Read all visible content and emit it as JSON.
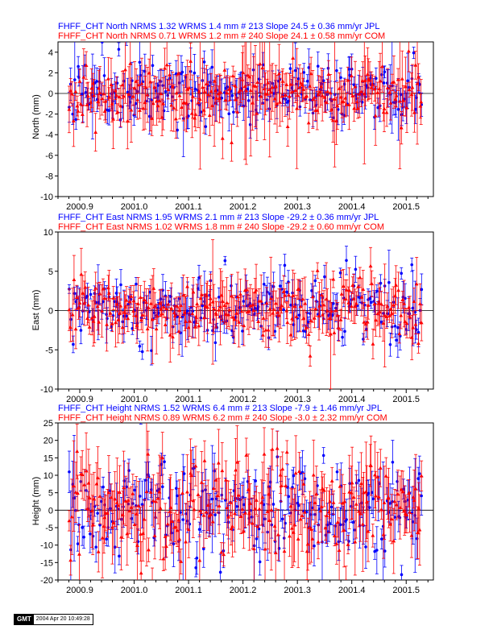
{
  "colors": {
    "jpl": "#0000ff",
    "com": "#ff0000",
    "axis": "#000000"
  },
  "footer": {
    "logo": "GMT",
    "timestamp": "2004 Apr 20 10:49:28"
  },
  "chart_data": [
    {
      "type": "scatter",
      "component": "north",
      "titles": [
        {
          "text": "FHFF_CHT North NRMS 1.32 WRMS  1.4 mm # 213 Slope  24.5 ±  0.36 mm/yr JPL",
          "color": "#0000ff"
        },
        {
          "text": "FHFF_CHT North NRMS 0.71 WRMS  1.2 mm # 240 Slope  24.1 ±  0.58 mm/yr COM",
          "color": "#ff0000"
        }
      ],
      "ylabel": "North (mm)",
      "xlim": [
        2000.86,
        2001.55
      ],
      "ylim": [
        -10,
        5
      ],
      "xticks": [
        "2000.9",
        "2001.0",
        "2001.1",
        "2001.2",
        "2001.3",
        "2001.4",
        "2001.5"
      ],
      "yticks": [
        -10,
        -8,
        -6,
        -4,
        -2,
        0,
        2,
        4
      ],
      "zero_line": true,
      "series": [
        {
          "name": "JPL",
          "count": 213,
          "marker": "circle",
          "color": "#0000ff",
          "err_mean": 1.1,
          "spread": 1.4,
          "seed": 11
        },
        {
          "name": "COM",
          "count": 240,
          "marker": "triangle",
          "color": "#ff0000",
          "err_mean": 1.7,
          "spread": 1.2,
          "seed": 23
        }
      ]
    },
    {
      "type": "scatter",
      "component": "east",
      "titles": [
        {
          "text": "FHFF_CHT East NRMS 1.95 WRMS  2.1 mm # 213 Slope  -29.2 ±  0.36 mm/yr JPL",
          "color": "#0000ff"
        },
        {
          "text": "FHFF_CHT East NRMS 1.02 WRMS  1.8 mm # 240 Slope  -29.2 ±  0.60 mm/yr COM",
          "color": "#ff0000"
        }
      ],
      "ylabel": "East (mm)",
      "xlim": [
        2000.86,
        2001.55
      ],
      "ylim": [
        -10,
        10
      ],
      "xticks": [
        "2000.9",
        "2001.0",
        "2001.1",
        "2001.2",
        "2001.3",
        "2001.4",
        "2001.5"
      ],
      "yticks": [
        -10,
        -5,
        0,
        5,
        10
      ],
      "zero_line": true,
      "series": [
        {
          "name": "JPL",
          "count": 213,
          "marker": "circle",
          "color": "#0000ff",
          "err_mean": 1.2,
          "spread": 2.1,
          "seed": 37
        },
        {
          "name": "COM",
          "count": 240,
          "marker": "triangle",
          "color": "#ff0000",
          "err_mean": 2.0,
          "spread": 1.8,
          "seed": 41
        }
      ]
    },
    {
      "type": "scatter",
      "component": "height",
      "titles": [
        {
          "text": "FHFF_CHT Height NRMS 1.52 WRMS  6.4 mm # 213 Slope   -7.9 ±  1.46 mm/yr JPL",
          "color": "#0000ff"
        },
        {
          "text": "FHFF_CHT Height NRMS 0.89 WRMS  6.2 mm # 240 Slope   -3.0 ±  2.32 mm/yr COM",
          "color": "#ff0000"
        }
      ],
      "ylabel": "Height (mm)",
      "xlim": [
        2000.86,
        2001.55
      ],
      "ylim": [
        -20,
        25
      ],
      "xticks": [
        "2000.9",
        "2001.0",
        "2001.1",
        "2001.2",
        "2001.3",
        "2001.4",
        "2001.5"
      ],
      "yticks": [
        -20,
        -15,
        -10,
        -5,
        0,
        5,
        10,
        15,
        20,
        25
      ],
      "zero_line": true,
      "series": [
        {
          "name": "JPL",
          "count": 213,
          "marker": "circle",
          "color": "#0000ff",
          "err_mean": 4.5,
          "spread": 6.4,
          "seed": 53
        },
        {
          "name": "COM",
          "count": 240,
          "marker": "triangle",
          "color": "#ff0000",
          "err_mean": 6.5,
          "spread": 6.2,
          "seed": 67
        }
      ]
    }
  ]
}
